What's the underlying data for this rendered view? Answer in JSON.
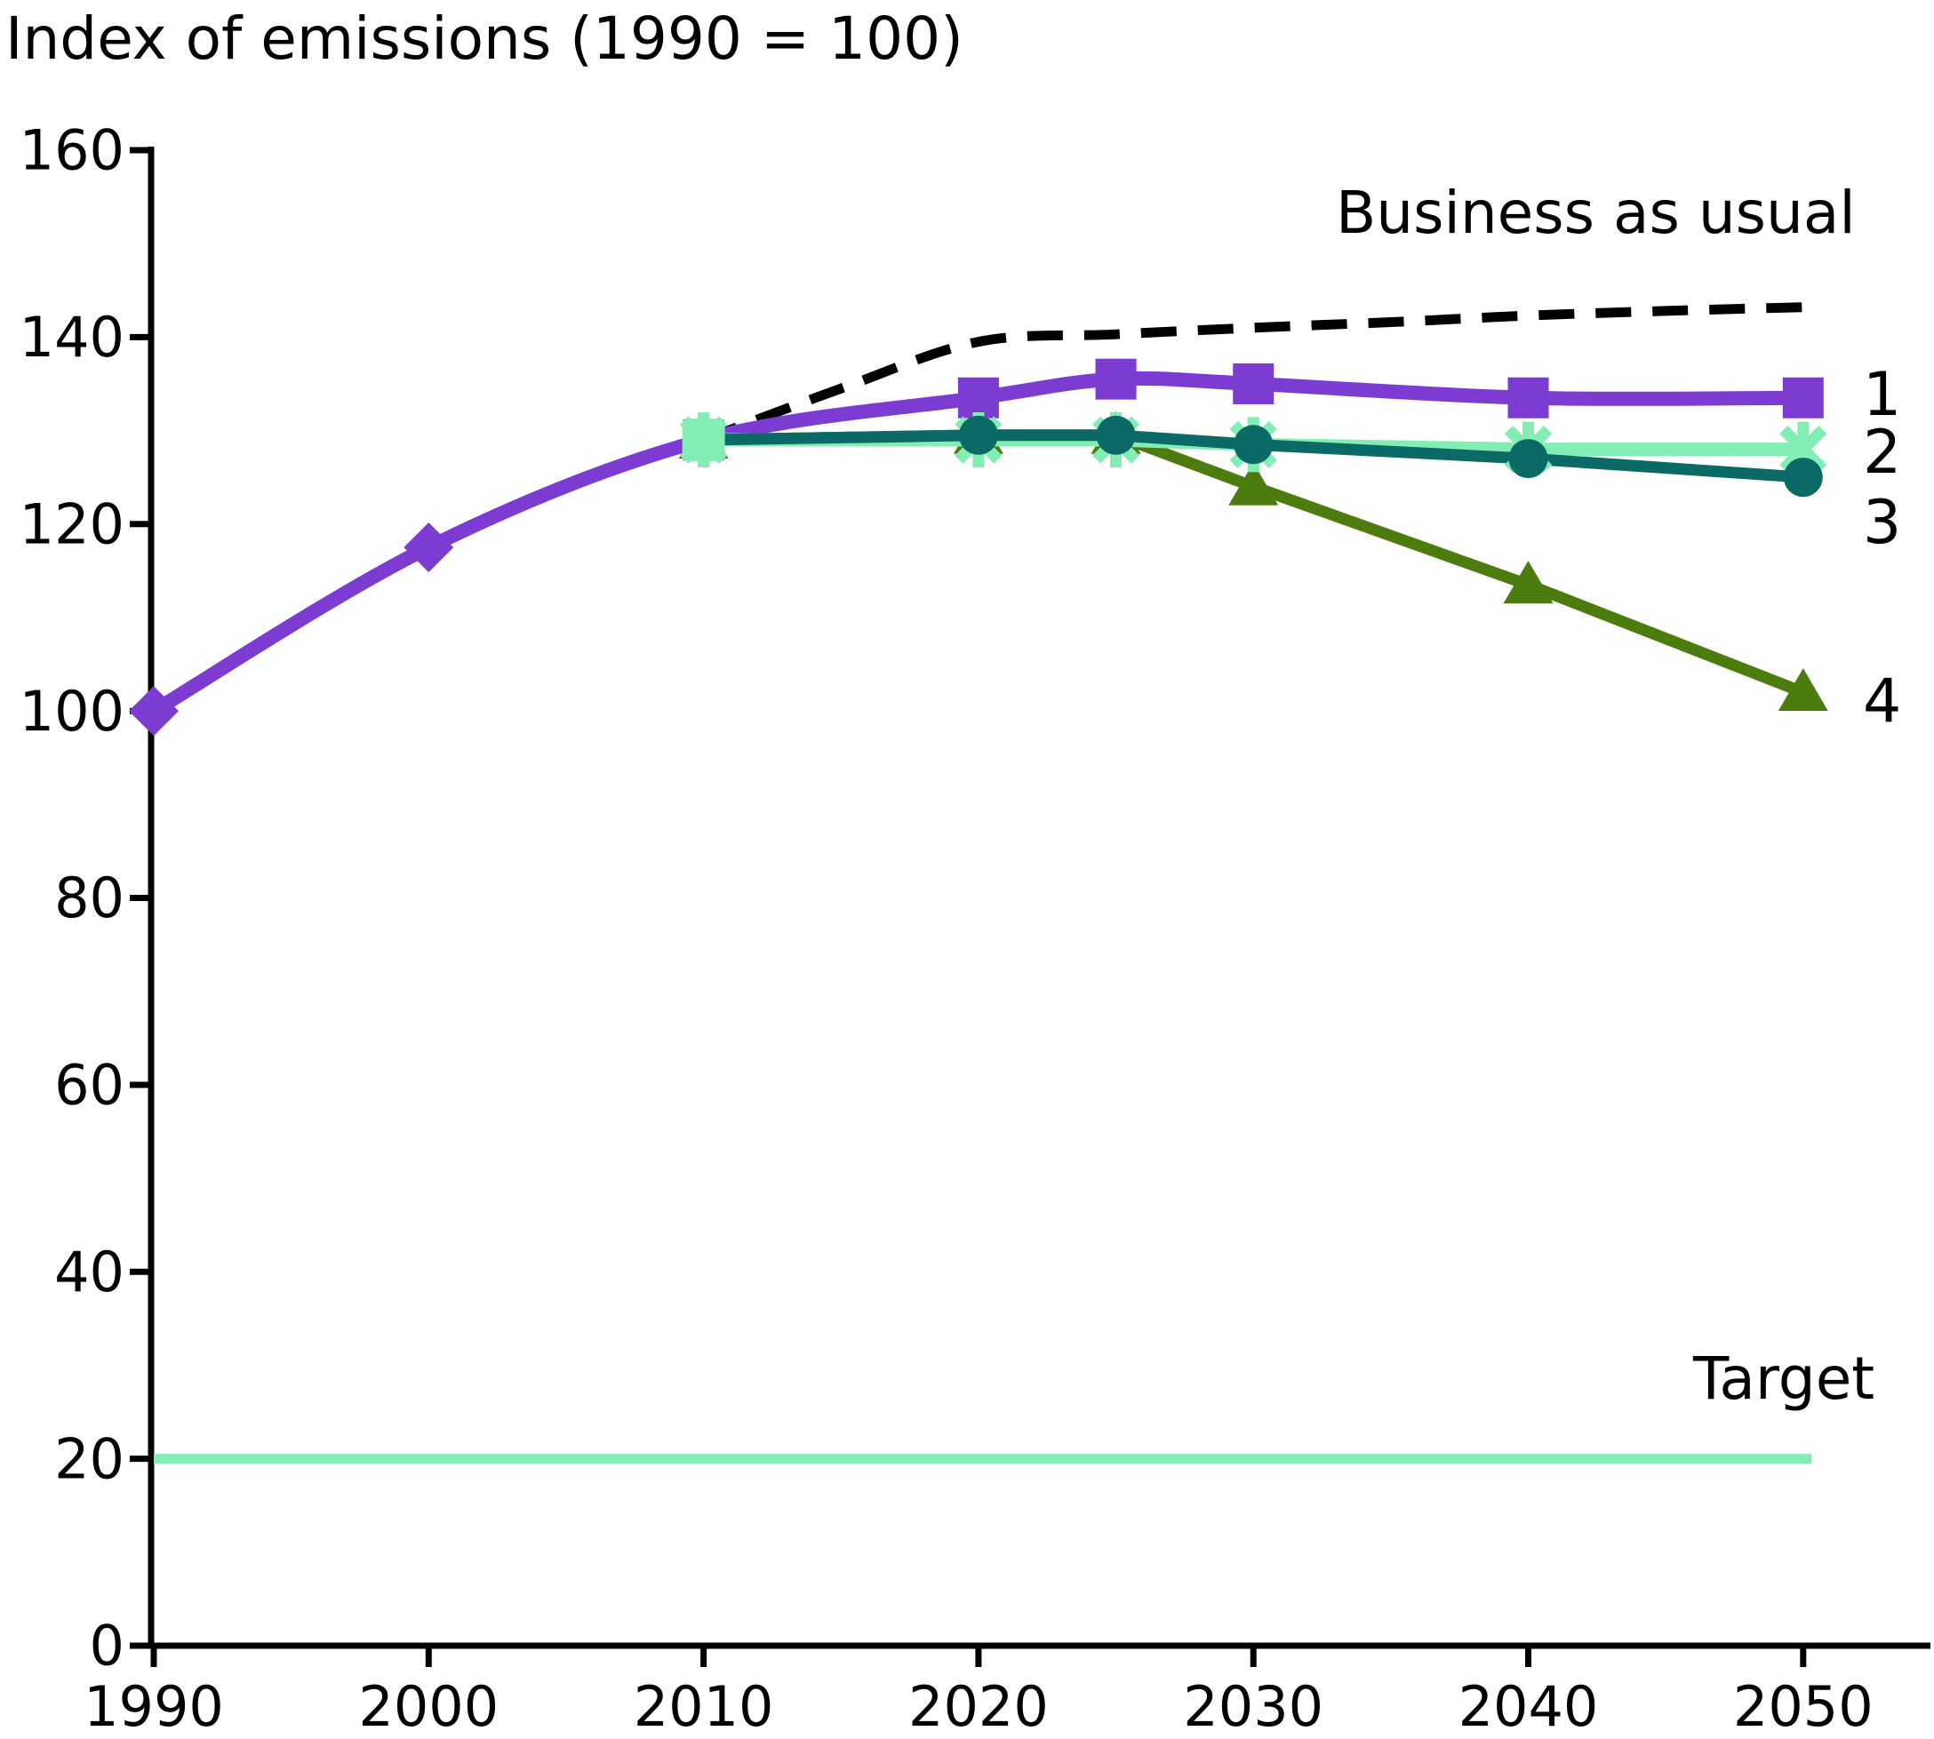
{
  "title": "Index of emissions (1990 = 100)",
  "annotations": {
    "business_as_usual": "Business as usual",
    "target": "Target"
  },
  "series_labels": [
    "1",
    "2",
    "3",
    "4"
  ],
  "colors": {
    "black": "#000000",
    "purple": "#7d3cd1",
    "mint": "#82eeb4",
    "teal": "#0b6a66",
    "olive": "#4c7c0e",
    "background": "#ffffff"
  },
  "chart_data": {
    "type": "line",
    "title": "Index of emissions (1990 = 100)",
    "xlabel": "",
    "ylabel": "Index of emissions (1990 = 100)",
    "x_ticks": [
      1990,
      2000,
      2010,
      2020,
      2030,
      2040,
      2050
    ],
    "y_ticks": [
      0,
      20,
      40,
      60,
      80,
      100,
      120,
      140,
      160
    ],
    "xlim": [
      1990,
      2055
    ],
    "ylim": [
      0,
      160
    ],
    "grid": false,
    "legend_position": "right-edge-labels",
    "series": [
      {
        "name": "Business as usual",
        "color_key": "black",
        "line": "dashed",
        "smooth": true,
        "x": [
          2010,
          2015,
          2020,
          2025,
          2030,
          2035,
          2040,
          2045,
          2050
        ],
        "values": [
          129,
          134.5,
          139.5,
          140.3,
          141,
          141.6,
          142.3,
          142.8,
          143.2
        ],
        "markers": []
      },
      {
        "name": "1",
        "color_key": "purple",
        "line": "solid",
        "smooth": true,
        "x": [
          1990,
          2000,
          2010,
          2020,
          2025,
          2030,
          2040,
          2050
        ],
        "values": [
          100,
          117.5,
          129,
          133.5,
          135.5,
          135,
          133.5,
          133.5
        ],
        "markers": [
          {
            "type": "diamond",
            "x": [
              1990,
              2000
            ]
          },
          {
            "type": "square",
            "x": [
              2010,
              2020,
              2025,
              2030,
              2040,
              2050
            ]
          }
        ]
      },
      {
        "name": "2",
        "color_key": "mint",
        "line": "solid",
        "smooth": false,
        "x": [
          2010,
          2020,
          2025,
          2030,
          2040,
          2050
        ],
        "values": [
          129,
          129,
          129,
          128.5,
          128,
          128
        ],
        "markers": [
          {
            "type": "asterisk",
            "x": [
              2010,
              2020,
              2025,
              2030,
              2040,
              2050
            ]
          }
        ]
      },
      {
        "name": "3",
        "color_key": "teal",
        "line": "solid",
        "smooth": false,
        "x": [
          2010,
          2020,
          2025,
          2030,
          2040,
          2050
        ],
        "values": [
          129,
          129.5,
          129.5,
          128.5,
          127,
          125
        ],
        "markers": [
          {
            "type": "circle",
            "x": [
              2010,
              2020,
              2025,
              2030,
              2040,
              2050
            ]
          }
        ]
      },
      {
        "name": "4",
        "color_key": "olive",
        "line": "solid",
        "smooth": false,
        "x": [
          2010,
          2020,
          2025,
          2030,
          2040,
          2050
        ],
        "values": [
          129,
          129.5,
          129.5,
          124,
          113.5,
          102
        ],
        "markers": [
          {
            "type": "triangle",
            "x": [
              2010,
              2020,
              2025,
              2030,
              2040,
              2050
            ]
          }
        ]
      },
      {
        "name": "Target",
        "color_key": "mint",
        "line": "solid",
        "smooth": false,
        "x": [
          1990,
          2050.3
        ],
        "values": [
          20,
          20
        ],
        "markers": []
      }
    ]
  }
}
